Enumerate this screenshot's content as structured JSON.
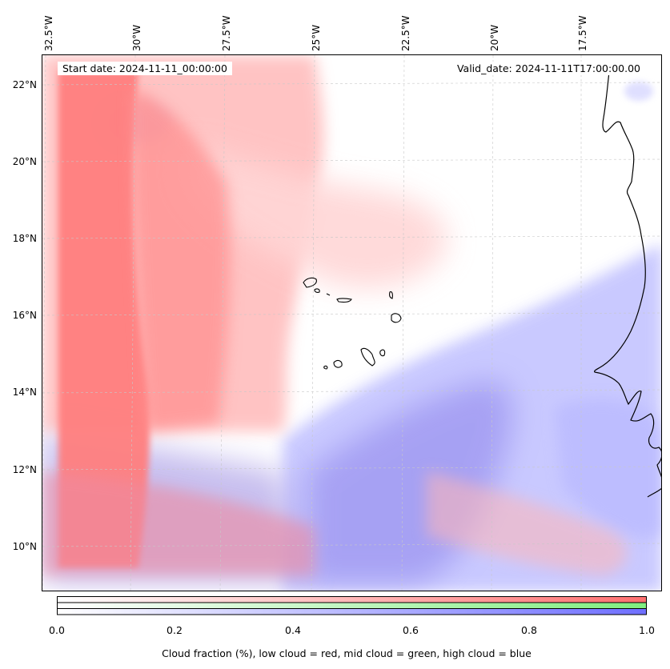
{
  "map": {
    "start_date_label": "Start date: 2024-11-11_00:00:00",
    "valid_date_label": "Valid_date: 2024-11-11T17:00:00.00",
    "lon_labels": [
      "32.5°W",
      "30°W",
      "27.5°W",
      "25°W",
      "22.5°W",
      "20°W",
      "17.5°W"
    ],
    "lat_labels": [
      "22°N",
      "20°N",
      "18°N",
      "16°N",
      "14°N",
      "12°N",
      "10°N"
    ],
    "colors": {
      "low": "#ff7f7f",
      "mid": "#88ee88",
      "high": "#7f7fff",
      "coast": "#000000"
    }
  },
  "colorbar": {
    "ticks": [
      "0.0",
      "0.2",
      "0.4",
      "0.6",
      "0.8",
      "1.0"
    ],
    "label": "Cloud fraction (%), low cloud = red, mid cloud = green, high cloud = blue"
  }
}
